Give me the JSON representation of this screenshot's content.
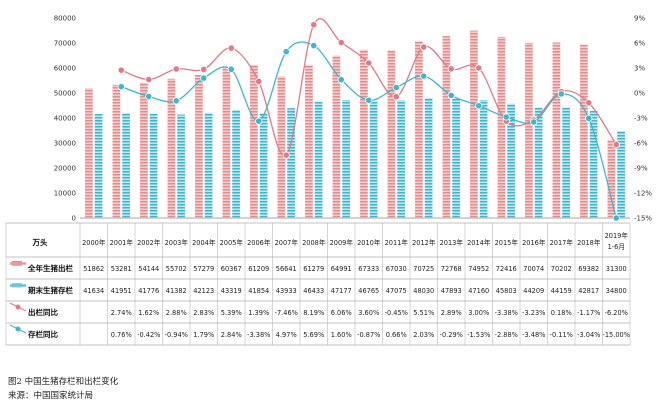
{
  "chart_data": {
    "type": "bar",
    "unit_label": "万头",
    "categories": [
      "2000年",
      "2001年",
      "2002年",
      "2003年",
      "2004年",
      "2005年",
      "2006年",
      "2007年",
      "2008年",
      "2009年",
      "2010年",
      "2011年",
      "2012年",
      "2013年",
      "2014年",
      "2015年",
      "2016年",
      "2017年",
      "2018年",
      "2019年 1-6月"
    ],
    "categories_display": [
      "2000年",
      "2001年",
      "2002年",
      "2003年",
      "2004年",
      "2005年",
      "2006年",
      "2007年",
      "2008年",
      "2009年",
      "2010年",
      "2011年",
      "2012年",
      "2013年",
      "2014年",
      "2015年",
      "2016年",
      "2017年",
      "2018年",
      [
        "2019年",
        "1-6月"
      ]
    ],
    "left_axis": {
      "min": 0,
      "max": 80000,
      "ticks": [
        "0",
        "10000",
        "20000",
        "30000",
        "40000",
        "50000",
        "60000",
        "70000",
        "80000"
      ]
    },
    "right_axis": {
      "min": -15,
      "max": 9,
      "ticks": [
        "-15%",
        "-12%",
        "-9%",
        "-6%",
        "-3%",
        "0%",
        "3%",
        "6%",
        "9%"
      ]
    },
    "series": [
      {
        "name": "全年生猪出栏",
        "kind": "bar",
        "axis": "left",
        "color": "#e89a9a",
        "values": [
          51862,
          53281,
          54144,
          55702,
          57279,
          60367,
          61209,
          56641,
          61279,
          64991,
          67333,
          67030,
          70725,
          72768,
          74952,
          72416,
          70074,
          70202,
          69382,
          31300
        ],
        "labels": [
          "51862",
          "53281",
          "54144",
          "55702",
          "57279",
          "60367",
          "61209",
          "56641",
          "61279",
          "64991",
          "67333",
          "67030",
          "70725",
          "72768",
          "74952",
          "72416",
          "70074",
          "70202",
          "69382",
          "31300"
        ]
      },
      {
        "name": "期末生猪存栏",
        "kind": "bar",
        "axis": "left",
        "color": "#5cc3d6",
        "values": [
          41634,
          41951,
          41776,
          41382,
          42123,
          43319,
          41854,
          43933,
          46433,
          47177,
          46765,
          47075,
          48030,
          47893,
          47160,
          45803,
          44209,
          44159,
          42817,
          34800
        ],
        "labels": [
          "41634",
          "41951",
          "41776",
          "41382",
          "42123",
          "43319",
          "41854",
          "43933",
          "46433",
          "47177",
          "46765",
          "47075",
          "48030",
          "47893",
          "47160",
          "45803",
          "44209",
          "44159",
          "42817",
          "34800"
        ]
      },
      {
        "name": "出栏同比",
        "kind": "line",
        "axis": "right",
        "color": "#e07a86",
        "values": [
          null,
          2.74,
          1.62,
          2.88,
          2.83,
          5.39,
          1.39,
          -7.46,
          8.19,
          6.06,
          3.6,
          -0.45,
          5.51,
          2.89,
          3.0,
          -3.38,
          -3.23,
          0.18,
          -1.17,
          -6.2
        ],
        "labels": [
          "",
          "2.74%",
          "1.62%",
          "2.88%",
          "2.83%",
          "5.39%",
          "1.39%",
          "-7.46%",
          "8.19%",
          "6.06%",
          "3.60%",
          "-0.45%",
          "5.51%",
          "2.89%",
          "3.00%",
          "-3.38%",
          "-3.23%",
          "0.18%",
          "-1.17%",
          "-6.20%"
        ]
      },
      {
        "name": "存栏同比",
        "kind": "line",
        "axis": "right",
        "color": "#3fb6cf",
        "values": [
          null,
          0.76,
          -0.42,
          -0.94,
          1.79,
          2.84,
          -3.38,
          4.97,
          5.69,
          1.6,
          -0.87,
          0.66,
          2.03,
          -0.29,
          -1.53,
          -2.88,
          -3.48,
          -0.11,
          -3.04,
          -15.0
        ],
        "labels": [
          "",
          "0.76%",
          "-0.42%",
          "-0.94%",
          "1.79%",
          "2.84%",
          "-3.38%",
          "4.97%",
          "5.69%",
          "1.60%",
          "-0.87%",
          "0.66%",
          "2.03%",
          "-0.29%",
          "-1.53%",
          "-2.88%",
          "-3.48%",
          "-0.11%",
          "-3.04%",
          "-15.00%"
        ]
      }
    ]
  },
  "caption": {
    "line1": "图2  中国生猪存栏和出栏变化",
    "line2": "来源：中国国家统计局"
  }
}
